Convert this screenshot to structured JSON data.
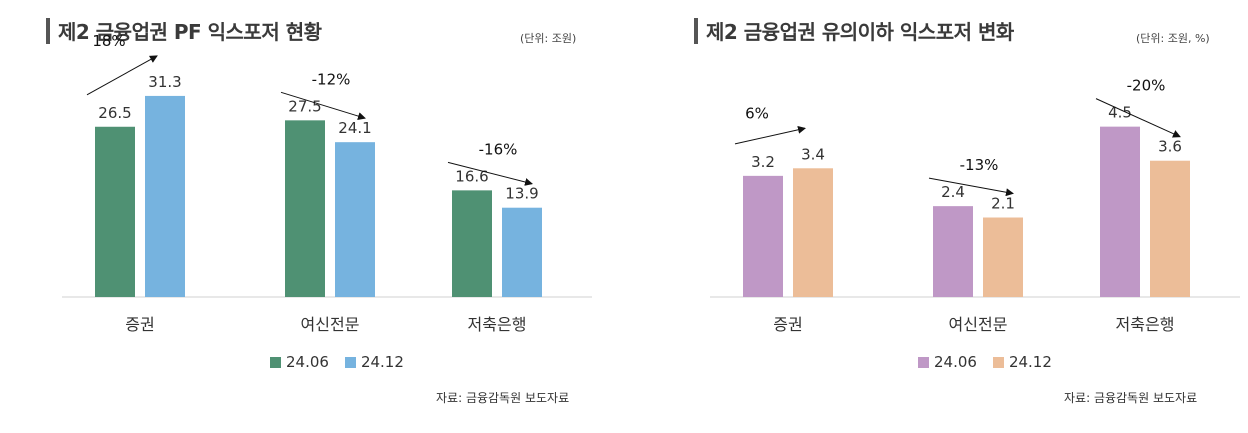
{
  "chart_data": [
    {
      "type": "bar",
      "title": "제2 금융업권 PF 익스포저 현황",
      "unit_label": "(단위: 조원)",
      "source": "자료: 금융감독원 보도자료",
      "categories": [
        "증권",
        "여신전문",
        "저축은행"
      ],
      "series": [
        {
          "name": "24.06",
          "values": [
            26.5,
            27.5,
            16.6
          ],
          "color": "#4f9173"
        },
        {
          "name": "24.12",
          "values": [
            31.3,
            24.1,
            13.9
          ],
          "color": "#76b3df"
        }
      ],
      "value_labels": [
        [
          "26.5",
          "27.5",
          "16.6"
        ],
        [
          "31.3",
          "24.1",
          "13.9"
        ]
      ],
      "change_labels": [
        "18%",
        "-12%",
        "-16%"
      ],
      "ylim": [
        0,
        33
      ],
      "grid": false,
      "legend_position": "bottom"
    },
    {
      "type": "bar",
      "title": "제2 금융업권 유의이하 익스포저 변화",
      "unit_label": "(단위: 조원, %)",
      "source": "자료: 금융감독원 보도자료",
      "categories": [
        "증권",
        "여신전문",
        "저축은행"
      ],
      "series": [
        {
          "name": "24.06",
          "values": [
            3.2,
            2.4,
            4.5
          ],
          "color": "#bf98c6"
        },
        {
          "name": "24.12",
          "values": [
            3.4,
            2.1,
            3.6
          ],
          "color": "#ecbd98"
        }
      ],
      "value_labels": [
        [
          "3.2",
          "2.4",
          "4.5"
        ],
        [
          "3.4",
          "2.1",
          "3.6"
        ]
      ],
      "change_labels": [
        "6%",
        "-13%",
        "-20%"
      ],
      "ylim": [
        0,
        5.6
      ],
      "grid": false,
      "legend_position": "bottom"
    }
  ]
}
